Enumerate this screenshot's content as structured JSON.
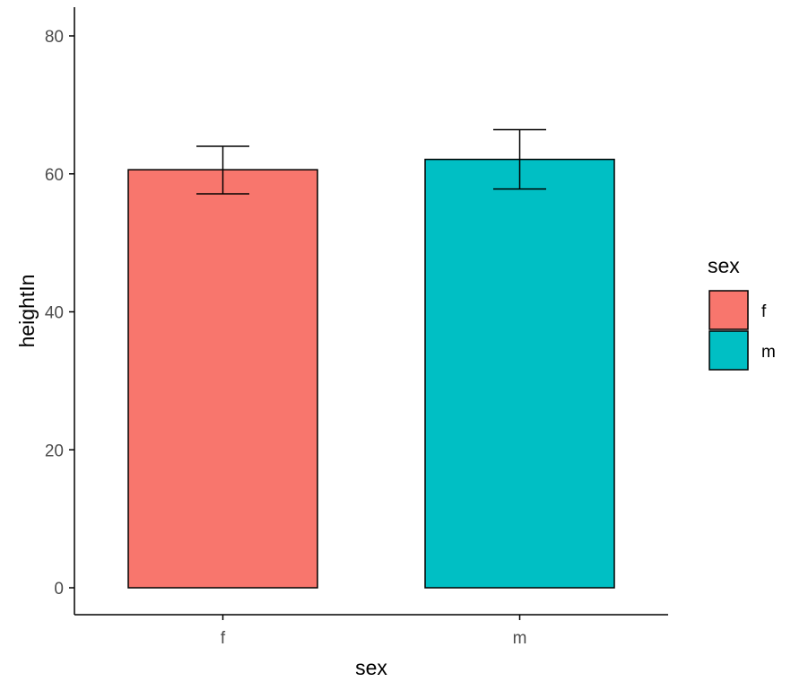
{
  "chart_data": {
    "type": "bar",
    "categories": [
      "f",
      "m"
    ],
    "values": [
      60.6,
      62.1
    ],
    "error_low": [
      57.1,
      57.8
    ],
    "error_high": [
      64.0,
      66.4
    ],
    "colors": [
      "#F8766D",
      "#00BFC4"
    ],
    "xlabel": "sex",
    "ylabel": "heightIn",
    "ylim": [
      0,
      80
    ],
    "yticks": [
      0,
      20,
      40,
      60,
      80
    ],
    "grid": false,
    "legend": {
      "title": "sex",
      "placement": "right",
      "entries": [
        {
          "label": "f",
          "color": "#F8766D"
        },
        {
          "label": "m",
          "color": "#00BFC4"
        }
      ]
    }
  }
}
